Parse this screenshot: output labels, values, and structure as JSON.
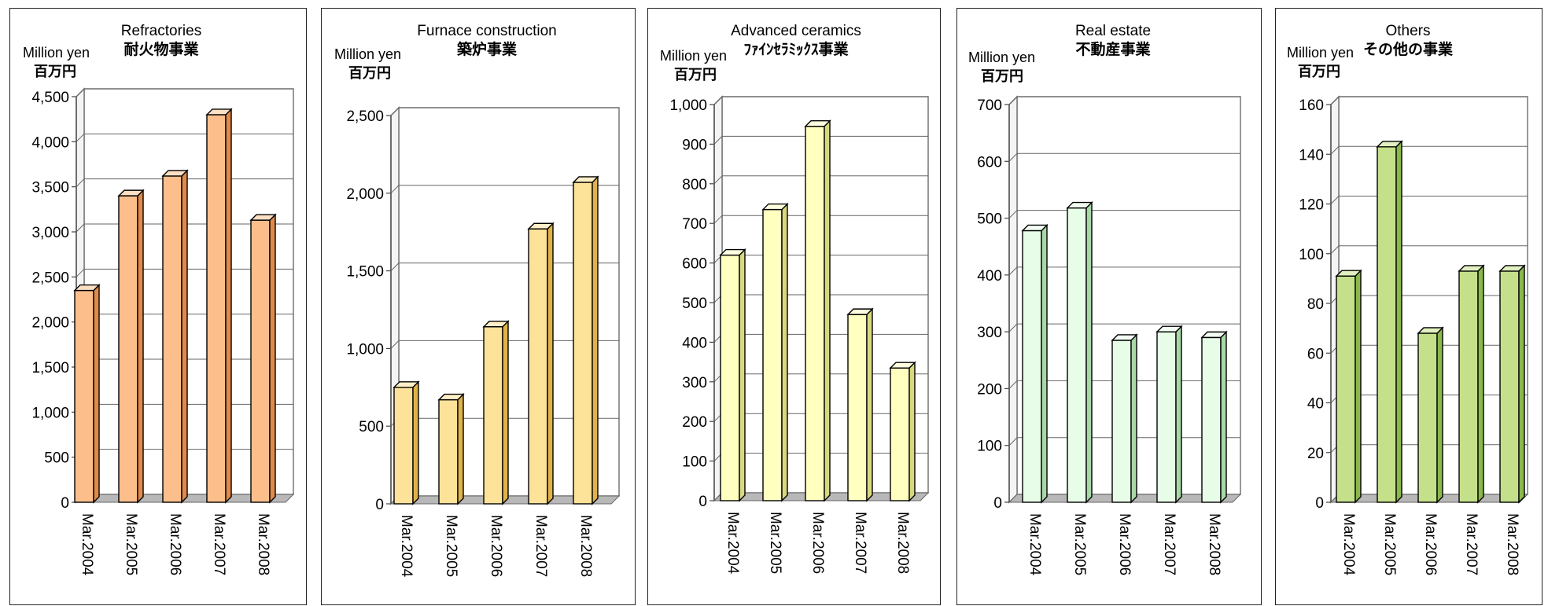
{
  "chart_data": [
    {
      "type": "bar",
      "title": "Refractories",
      "title_jp": "耐火物事業",
      "unit_en": "Million yen",
      "unit_jp": "百万円",
      "categories": [
        "Mar.2004",
        "Mar.2005",
        "Mar.2006",
        "Mar.2007",
        "Mar.2008"
      ],
      "values": [
        2350,
        3400,
        3620,
        4300,
        3130
      ],
      "ylim": [
        0,
        4500
      ],
      "yticks": [
        0,
        500,
        1000,
        1500,
        2000,
        2500,
        3000,
        3500,
        4000,
        4500
      ],
      "ytick_labels": [
        "0",
        "500",
        "1,000",
        "1,500",
        "2,000",
        "2,500",
        "3,000",
        "3,500",
        "4,000",
        "4,500"
      ],
      "grid": true,
      "colors": {
        "front": "#fcbf8c",
        "side": "#e08a4a",
        "top": "#fde0c4"
      }
    },
    {
      "type": "bar",
      "title": "Furnace construction",
      "title_jp": "築炉事業",
      "unit_en": "Million yen",
      "unit_jp": "百万円",
      "categories": [
        "Mar.2004",
        "Mar.2005",
        "Mar.2006",
        "Mar.2007",
        "Mar.2008"
      ],
      "values": [
        750,
        670,
        1140,
        1770,
        2070
      ],
      "ylim": [
        0,
        2500
      ],
      "yticks": [
        0,
        500,
        1000,
        1500,
        2000,
        2500
      ],
      "ytick_labels": [
        "0",
        "500",
        "1,000",
        "1,500",
        "2,000",
        "2,500"
      ],
      "grid": true,
      "colors": {
        "front": "#fde29a",
        "side": "#e0b24a",
        "top": "#fff0c8"
      }
    },
    {
      "type": "bar",
      "title": "Advanced ceramics",
      "title_jp": "ﾌｧｲﾝｾﾗﾐｯｸｽ事業",
      "unit_en": "Million yen",
      "unit_jp": "百万円",
      "categories": [
        "Mar.2004",
        "Mar.2005",
        "Mar.2006",
        "Mar.2007",
        "Mar.2008"
      ],
      "values": [
        620,
        735,
        945,
        470,
        335
      ],
      "ylim": [
        0,
        1000
      ],
      "yticks": [
        0,
        100,
        200,
        300,
        400,
        500,
        600,
        700,
        800,
        900,
        1000
      ],
      "ytick_labels": [
        "0",
        "100",
        "200",
        "300",
        "400",
        "500",
        "600",
        "700",
        "800",
        "900",
        "1,000"
      ],
      "grid": true,
      "colors": {
        "front": "#ffffc0",
        "side": "#d8d880",
        "top": "#ffffe0"
      }
    },
    {
      "type": "bar",
      "title": "Real estate",
      "title_jp": "不動産事業",
      "unit_en": "Million yen",
      "unit_jp": "百万円",
      "categories": [
        "Mar.2004",
        "Mar.2005",
        "Mar.2006",
        "Mar.2007",
        "Mar.2008"
      ],
      "values": [
        478,
        518,
        285,
        300,
        290
      ],
      "ylim": [
        0,
        700
      ],
      "yticks": [
        0,
        100,
        200,
        300,
        400,
        500,
        600,
        700
      ],
      "ytick_labels": [
        "0",
        "100",
        "200",
        "300",
        "400",
        "500",
        "600",
        "700"
      ],
      "grid": true,
      "colors": {
        "front": "#e8fde8",
        "side": "#a8d8a8",
        "top": "#f4fff4"
      }
    },
    {
      "type": "bar",
      "title": "Others",
      "title_jp": "その他の事業",
      "unit_en": "Million yen",
      "unit_jp": "百万円",
      "categories": [
        "Mar.2004",
        "Mar.2005",
        "Mar.2006",
        "Mar.2007",
        "Mar.2008"
      ],
      "values": [
        91,
        143,
        68,
        93,
        93
      ],
      "ylim": [
        0,
        160
      ],
      "yticks": [
        0,
        20,
        40,
        60,
        80,
        100,
        120,
        140,
        160
      ],
      "ytick_labels": [
        "0",
        "20",
        "40",
        "60",
        "80",
        "100",
        "120",
        "140",
        "160"
      ],
      "grid": true,
      "colors": {
        "front": "#c4e08a",
        "side": "#8ab84a",
        "top": "#e0f0c0"
      }
    }
  ]
}
